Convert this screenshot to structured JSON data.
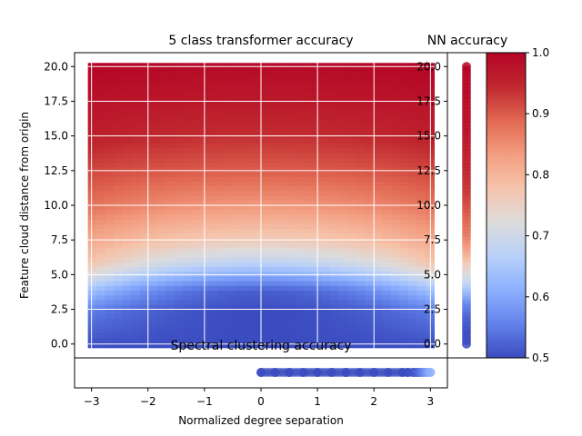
{
  "chart_data": [
    {
      "type": "heatmap",
      "title": "5 class transformer accuracy",
      "xlabel": "Normalized degree separation",
      "ylabel": "Feature cloud distance from origin",
      "xlim": [
        -3.3,
        3.3
      ],
      "ylim": [
        -1.0,
        21.0
      ],
      "xticks": [
        "−3",
        "−2",
        "−1",
        "0",
        "1",
        "2",
        "3"
      ],
      "xtick_values": [
        -3,
        -2,
        -1,
        0,
        1,
        2,
        3
      ],
      "yticks": [
        "0.0",
        "2.5",
        "5.0",
        "7.5",
        "10.0",
        "12.5",
        "15.0",
        "17.5",
        "20.0"
      ],
      "ytick_values": [
        0,
        2.5,
        5,
        7.5,
        10,
        12.5,
        15,
        17.5,
        20
      ],
      "grid": true,
      "x_range": [
        -3,
        3
      ],
      "y_range": [
        0,
        20
      ],
      "accuracy_profile": {
        "y": [
          0,
          2.5,
          4.0,
          5.0,
          6.0,
          7.5,
          10,
          12.5,
          15,
          17.5,
          20
        ],
        "accuracy_at_center": [
          0.5,
          0.5,
          0.52,
          0.6,
          0.68,
          0.76,
          0.84,
          0.9,
          0.94,
          0.97,
          0.99
        ],
        "accuracy_at_edges": [
          0.5,
          0.55,
          0.64,
          0.72,
          0.78,
          0.82,
          0.88,
          0.92,
          0.96,
          0.98,
          1.0
        ]
      }
    },
    {
      "type": "scatter",
      "title": "NN accuracy",
      "yticks": [
        "0.0",
        "2.5",
        "5.0",
        "7.5",
        "10.0",
        "12.5",
        "15.0",
        "17.5",
        "20.0"
      ],
      "ytick_values": [
        0,
        2.5,
        5,
        7.5,
        10,
        12.5,
        15,
        17.5,
        20
      ],
      "ylim": [
        -1.0,
        21.0
      ],
      "y": [
        0,
        1,
        2,
        3,
        3.5,
        4,
        4.5,
        5,
        5.5,
        6,
        6.5,
        7,
        7.5,
        8,
        9,
        10,
        11,
        12,
        13,
        14,
        15,
        16,
        17,
        18,
        19,
        20
      ],
      "values": [
        0.5,
        0.5,
        0.52,
        0.56,
        0.6,
        0.64,
        0.68,
        0.71,
        0.74,
        0.77,
        0.8,
        0.83,
        0.85,
        0.87,
        0.89,
        0.91,
        0.93,
        0.94,
        0.95,
        0.96,
        0.97,
        0.98,
        0.98,
        0.99,
        0.99,
        1.0
      ]
    },
    {
      "type": "scatter",
      "title": "Spectral clustering accuracy",
      "x": [
        0,
        0.25,
        0.5,
        0.75,
        1.0,
        1.25,
        1.5,
        1.75,
        2.0,
        2.25,
        2.5,
        2.6,
        2.7,
        2.75,
        2.8,
        2.85,
        2.9,
        2.95,
        3.0
      ],
      "values": [
        0.5,
        0.5,
        0.5,
        0.5,
        0.5,
        0.5,
        0.5,
        0.5,
        0.5,
        0.5,
        0.5,
        0.5,
        0.51,
        0.52,
        0.54,
        0.56,
        0.58,
        0.6,
        0.62
      ]
    },
    {
      "type": "colorbar",
      "vmin": 0.5,
      "vmax": 1.0,
      "ticks": [
        "0.5",
        "0.6",
        "0.7",
        "0.8",
        "0.9",
        "1.0"
      ],
      "tick_values": [
        0.5,
        0.6,
        0.7,
        0.8,
        0.9,
        1.0
      ],
      "colormap": "coolwarm",
      "colors": [
        "#3b4cc0",
        "#6282ea",
        "#8db0fe",
        "#b8d0f9",
        "#dddcdc",
        "#f5c4ac",
        "#f39d80",
        "#e16852",
        "#c0282f",
        "#b40426"
      ]
    }
  ]
}
